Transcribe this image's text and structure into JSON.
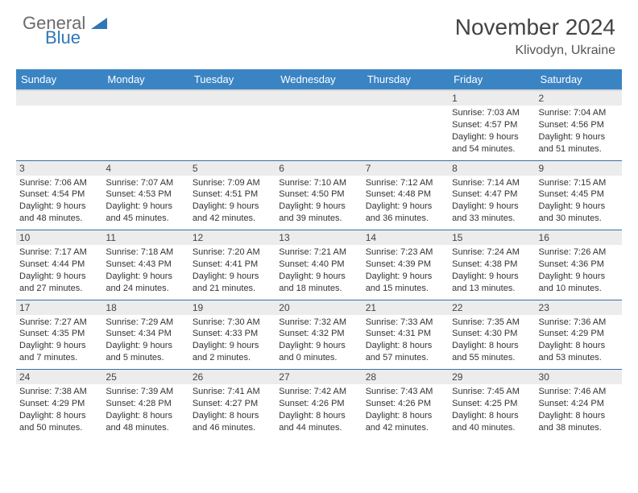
{
  "brand": {
    "part1": "General",
    "part2": "Blue"
  },
  "title": "November 2024",
  "location": "Klivodyn, Ukraine",
  "colors": {
    "header_bg": "#3b84c4",
    "header_text": "#ffffff",
    "daynum_bg": "#ececec",
    "rule": "#3b6fa0",
    "brand_gray": "#6b6b6b",
    "brand_blue": "#2e77b8"
  },
  "day_headers": [
    "Sunday",
    "Monday",
    "Tuesday",
    "Wednesday",
    "Thursday",
    "Friday",
    "Saturday"
  ],
  "weeks": [
    {
      "nums": [
        "",
        "",
        "",
        "",
        "",
        "1",
        "2"
      ],
      "cells": [
        null,
        null,
        null,
        null,
        null,
        {
          "sunrise": "Sunrise: 7:03 AM",
          "sunset": "Sunset: 4:57 PM",
          "day1": "Daylight: 9 hours",
          "day2": "and 54 minutes."
        },
        {
          "sunrise": "Sunrise: 7:04 AM",
          "sunset": "Sunset: 4:56 PM",
          "day1": "Daylight: 9 hours",
          "day2": "and 51 minutes."
        }
      ]
    },
    {
      "nums": [
        "3",
        "4",
        "5",
        "6",
        "7",
        "8",
        "9"
      ],
      "cells": [
        {
          "sunrise": "Sunrise: 7:06 AM",
          "sunset": "Sunset: 4:54 PM",
          "day1": "Daylight: 9 hours",
          "day2": "and 48 minutes."
        },
        {
          "sunrise": "Sunrise: 7:07 AM",
          "sunset": "Sunset: 4:53 PM",
          "day1": "Daylight: 9 hours",
          "day2": "and 45 minutes."
        },
        {
          "sunrise": "Sunrise: 7:09 AM",
          "sunset": "Sunset: 4:51 PM",
          "day1": "Daylight: 9 hours",
          "day2": "and 42 minutes."
        },
        {
          "sunrise": "Sunrise: 7:10 AM",
          "sunset": "Sunset: 4:50 PM",
          "day1": "Daylight: 9 hours",
          "day2": "and 39 minutes."
        },
        {
          "sunrise": "Sunrise: 7:12 AM",
          "sunset": "Sunset: 4:48 PM",
          "day1": "Daylight: 9 hours",
          "day2": "and 36 minutes."
        },
        {
          "sunrise": "Sunrise: 7:14 AM",
          "sunset": "Sunset: 4:47 PM",
          "day1": "Daylight: 9 hours",
          "day2": "and 33 minutes."
        },
        {
          "sunrise": "Sunrise: 7:15 AM",
          "sunset": "Sunset: 4:45 PM",
          "day1": "Daylight: 9 hours",
          "day2": "and 30 minutes."
        }
      ]
    },
    {
      "nums": [
        "10",
        "11",
        "12",
        "13",
        "14",
        "15",
        "16"
      ],
      "cells": [
        {
          "sunrise": "Sunrise: 7:17 AM",
          "sunset": "Sunset: 4:44 PM",
          "day1": "Daylight: 9 hours",
          "day2": "and 27 minutes."
        },
        {
          "sunrise": "Sunrise: 7:18 AM",
          "sunset": "Sunset: 4:43 PM",
          "day1": "Daylight: 9 hours",
          "day2": "and 24 minutes."
        },
        {
          "sunrise": "Sunrise: 7:20 AM",
          "sunset": "Sunset: 4:41 PM",
          "day1": "Daylight: 9 hours",
          "day2": "and 21 minutes."
        },
        {
          "sunrise": "Sunrise: 7:21 AM",
          "sunset": "Sunset: 4:40 PM",
          "day1": "Daylight: 9 hours",
          "day2": "and 18 minutes."
        },
        {
          "sunrise": "Sunrise: 7:23 AM",
          "sunset": "Sunset: 4:39 PM",
          "day1": "Daylight: 9 hours",
          "day2": "and 15 minutes."
        },
        {
          "sunrise": "Sunrise: 7:24 AM",
          "sunset": "Sunset: 4:38 PM",
          "day1": "Daylight: 9 hours",
          "day2": "and 13 minutes."
        },
        {
          "sunrise": "Sunrise: 7:26 AM",
          "sunset": "Sunset: 4:36 PM",
          "day1": "Daylight: 9 hours",
          "day2": "and 10 minutes."
        }
      ]
    },
    {
      "nums": [
        "17",
        "18",
        "19",
        "20",
        "21",
        "22",
        "23"
      ],
      "cells": [
        {
          "sunrise": "Sunrise: 7:27 AM",
          "sunset": "Sunset: 4:35 PM",
          "day1": "Daylight: 9 hours",
          "day2": "and 7 minutes."
        },
        {
          "sunrise": "Sunrise: 7:29 AM",
          "sunset": "Sunset: 4:34 PM",
          "day1": "Daylight: 9 hours",
          "day2": "and 5 minutes."
        },
        {
          "sunrise": "Sunrise: 7:30 AM",
          "sunset": "Sunset: 4:33 PM",
          "day1": "Daylight: 9 hours",
          "day2": "and 2 minutes."
        },
        {
          "sunrise": "Sunrise: 7:32 AM",
          "sunset": "Sunset: 4:32 PM",
          "day1": "Daylight: 9 hours",
          "day2": "and 0 minutes."
        },
        {
          "sunrise": "Sunrise: 7:33 AM",
          "sunset": "Sunset: 4:31 PM",
          "day1": "Daylight: 8 hours",
          "day2": "and 57 minutes."
        },
        {
          "sunrise": "Sunrise: 7:35 AM",
          "sunset": "Sunset: 4:30 PM",
          "day1": "Daylight: 8 hours",
          "day2": "and 55 minutes."
        },
        {
          "sunrise": "Sunrise: 7:36 AM",
          "sunset": "Sunset: 4:29 PM",
          "day1": "Daylight: 8 hours",
          "day2": "and 53 minutes."
        }
      ]
    },
    {
      "nums": [
        "24",
        "25",
        "26",
        "27",
        "28",
        "29",
        "30"
      ],
      "cells": [
        {
          "sunrise": "Sunrise: 7:38 AM",
          "sunset": "Sunset: 4:29 PM",
          "day1": "Daylight: 8 hours",
          "day2": "and 50 minutes."
        },
        {
          "sunrise": "Sunrise: 7:39 AM",
          "sunset": "Sunset: 4:28 PM",
          "day1": "Daylight: 8 hours",
          "day2": "and 48 minutes."
        },
        {
          "sunrise": "Sunrise: 7:41 AM",
          "sunset": "Sunset: 4:27 PM",
          "day1": "Daylight: 8 hours",
          "day2": "and 46 minutes."
        },
        {
          "sunrise": "Sunrise: 7:42 AM",
          "sunset": "Sunset: 4:26 PM",
          "day1": "Daylight: 8 hours",
          "day2": "and 44 minutes."
        },
        {
          "sunrise": "Sunrise: 7:43 AM",
          "sunset": "Sunset: 4:26 PM",
          "day1": "Daylight: 8 hours",
          "day2": "and 42 minutes."
        },
        {
          "sunrise": "Sunrise: 7:45 AM",
          "sunset": "Sunset: 4:25 PM",
          "day1": "Daylight: 8 hours",
          "day2": "and 40 minutes."
        },
        {
          "sunrise": "Sunrise: 7:46 AM",
          "sunset": "Sunset: 4:24 PM",
          "day1": "Daylight: 8 hours",
          "day2": "and 38 minutes."
        }
      ]
    }
  ]
}
